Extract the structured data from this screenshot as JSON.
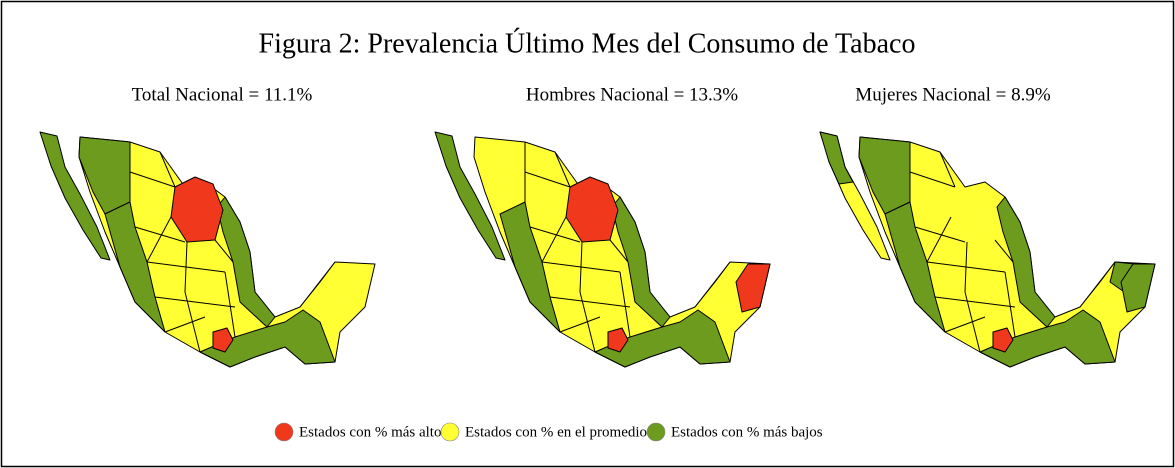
{
  "title": "Figura 2: Prevalencia Último Mes del Consumo de Tabaco",
  "maps": [
    {
      "title": "Total Nacional = 11.1%"
    },
    {
      "title": "Hombres Nacional = 13.3%"
    },
    {
      "title": "Mujeres Nacional = 8.9%"
    }
  ],
  "legend": [
    {
      "label": "Estados con % más altos",
      "color": "#f0391c"
    },
    {
      "label": "Estados con % en el promedio",
      "color": "#ffff33"
    },
    {
      "label": "Estados con % más bajos",
      "color": "#6d9b1e"
    }
  ]
}
